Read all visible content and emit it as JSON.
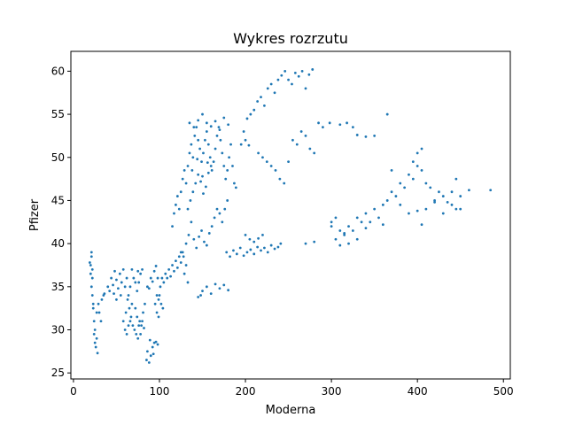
{
  "chart_data": {
    "type": "scatter",
    "title": "Wykres rozrzutu",
    "xlabel": "Moderna",
    "ylabel": "Pfizer",
    "xlim": [
      -3,
      508
    ],
    "ylim": [
      24.3,
      62.3
    ],
    "xticks": [
      0,
      100,
      200,
      300,
      400,
      500
    ],
    "yticks": [
      25,
      30,
      35,
      40,
      45,
      50,
      55,
      60
    ],
    "grid": false,
    "color": "#1f77b4",
    "series": [
      {
        "points": [
          [
            20,
            36.5
          ],
          [
            20,
            37.5
          ],
          [
            21,
            38.5
          ],
          [
            22,
            37
          ],
          [
            21,
            35
          ],
          [
            22,
            34
          ],
          [
            23,
            33
          ],
          [
            24,
            31
          ],
          [
            24,
            29.5
          ],
          [
            25,
            28.5
          ],
          [
            26,
            28
          ],
          [
            28,
            27.3
          ],
          [
            22,
            36
          ],
          [
            21,
            39
          ],
          [
            19,
            37.8
          ],
          [
            23,
            32.5
          ],
          [
            25,
            30
          ],
          [
            27,
            29
          ],
          [
            27,
            32
          ],
          [
            29,
            33
          ],
          [
            30,
            32
          ],
          [
            32,
            31
          ],
          [
            33,
            33.5
          ],
          [
            35,
            34
          ],
          [
            36,
            34.2
          ],
          [
            40,
            35
          ],
          [
            42,
            34.5
          ],
          [
            44,
            36
          ],
          [
            46,
            35.2
          ],
          [
            48,
            36.8
          ],
          [
            50,
            35.8
          ],
          [
            52,
            34.8
          ],
          [
            54,
            36.5
          ],
          [
            56,
            35.5
          ],
          [
            58,
            37
          ],
          [
            55,
            34
          ],
          [
            50,
            33.5
          ],
          [
            47,
            34.2
          ],
          [
            60,
            35
          ],
          [
            62,
            36
          ],
          [
            64,
            34
          ],
          [
            66,
            35
          ],
          [
            68,
            37
          ],
          [
            70,
            36
          ],
          [
            72,
            35.5
          ],
          [
            74,
            34.5
          ],
          [
            76,
            35.5
          ],
          [
            78,
            36.5
          ],
          [
            80,
            37
          ],
          [
            63,
            33.5
          ],
          [
            65,
            32.5
          ],
          [
            67,
            31.5
          ],
          [
            69,
            30.5
          ],
          [
            71,
            30
          ],
          [
            73,
            29.5
          ],
          [
            75,
            29
          ],
          [
            77,
            31
          ],
          [
            79,
            30.5
          ],
          [
            81,
            32
          ],
          [
            83,
            33
          ],
          [
            72,
            32.5
          ],
          [
            68,
            33
          ],
          [
            75,
            36.8
          ],
          [
            58,
            31
          ],
          [
            60,
            30
          ],
          [
            62,
            29.5
          ],
          [
            64,
            30.5
          ],
          [
            66,
            31
          ],
          [
            61,
            32
          ],
          [
            85,
            26.5
          ],
          [
            88,
            26.2
          ],
          [
            90,
            27
          ],
          [
            92,
            28
          ],
          [
            94,
            28.5
          ],
          [
            96,
            28.6
          ],
          [
            98,
            28.3
          ],
          [
            86,
            27.5
          ],
          [
            89,
            28.8
          ],
          [
            93,
            27.2
          ],
          [
            80,
            31
          ],
          [
            82,
            30.2
          ],
          [
            78,
            29.5
          ],
          [
            76,
            30.5
          ],
          [
            74,
            31.5
          ],
          [
            95,
            33
          ],
          [
            97,
            34
          ],
          [
            99,
            33.5
          ],
          [
            101,
            35
          ],
          [
            103,
            36
          ],
          [
            105,
            35.5
          ],
          [
            107,
            36.5
          ],
          [
            109,
            36
          ],
          [
            111,
            37
          ],
          [
            113,
            36.2
          ],
          [
            115,
            37.5
          ],
          [
            117,
            36.8
          ],
          [
            119,
            38
          ],
          [
            121,
            37.2
          ],
          [
            123,
            38.5
          ],
          [
            125,
            37.8
          ],
          [
            127,
            39
          ],
          [
            129,
            36.5
          ],
          [
            131,
            37.5
          ],
          [
            133,
            35.5
          ],
          [
            86,
            35
          ],
          [
            88,
            34.8
          ],
          [
            90,
            36
          ],
          [
            92,
            35.6
          ],
          [
            94,
            36.8
          ],
          [
            96,
            37.4
          ],
          [
            98,
            36
          ],
          [
            100,
            34
          ],
          [
            102,
            33
          ],
          [
            104,
            32.5
          ],
          [
            97,
            32
          ],
          [
            99,
            31.5
          ],
          [
            115,
            42
          ],
          [
            117,
            43.5
          ],
          [
            119,
            44.5
          ],
          [
            121,
            45.5
          ],
          [
            123,
            44
          ],
          [
            125,
            46
          ],
          [
            127,
            47.5
          ],
          [
            129,
            48.5
          ],
          [
            131,
            47
          ],
          [
            133,
            49
          ],
          [
            135,
            50.5
          ],
          [
            137,
            51.5
          ],
          [
            139,
            50
          ],
          [
            141,
            52.5
          ],
          [
            143,
            53.5
          ],
          [
            145,
            52
          ],
          [
            147,
            51
          ],
          [
            149,
            49.5
          ],
          [
            151,
            50.5
          ],
          [
            153,
            52
          ],
          [
            155,
            53
          ],
          [
            157,
            51.5
          ],
          [
            159,
            50
          ],
          [
            161,
            48.5
          ],
          [
            163,
            49.5
          ],
          [
            165,
            51
          ],
          [
            167,
            52.5
          ],
          [
            169,
            53.5
          ],
          [
            171,
            52
          ],
          [
            173,
            50.5
          ],
          [
            175,
            49
          ],
          [
            177,
            47.5
          ],
          [
            179,
            48.5
          ],
          [
            181,
            50
          ],
          [
            183,
            51.5
          ],
          [
            185,
            49
          ],
          [
            187,
            47
          ],
          [
            189,
            46.5
          ],
          [
            135,
            54
          ],
          [
            140,
            53.5
          ],
          [
            145,
            54.3
          ],
          [
            150,
            55
          ],
          [
            155,
            54
          ],
          [
            160,
            53.6
          ],
          [
            165,
            54.2
          ],
          [
            170,
            53.2
          ],
          [
            175,
            54.6
          ],
          [
            180,
            53.8
          ],
          [
            133,
            44
          ],
          [
            136,
            45
          ],
          [
            139,
            46
          ],
          [
            142,
            47
          ],
          [
            145,
            48
          ],
          [
            148,
            47.2
          ],
          [
            151,
            45.8
          ],
          [
            154,
            46.6
          ],
          [
            157,
            48.2
          ],
          [
            160,
            49
          ],
          [
            138,
            48.5
          ],
          [
            144,
            49.8
          ],
          [
            150,
            47.8
          ],
          [
            156,
            49.4
          ],
          [
            125,
            39
          ],
          [
            128,
            38.5
          ],
          [
            131,
            40
          ],
          [
            134,
            41
          ],
          [
            137,
            42.5
          ],
          [
            140,
            40.5
          ],
          [
            143,
            39.5
          ],
          [
            146,
            40.8
          ],
          [
            149,
            41.5
          ],
          [
            152,
            40.2
          ],
          [
            155,
            39.8
          ],
          [
            158,
            41.2
          ],
          [
            161,
            42
          ],
          [
            164,
            43
          ],
          [
            167,
            44
          ],
          [
            170,
            43.5
          ],
          [
            173,
            42.5
          ],
          [
            176,
            44
          ],
          [
            179,
            45
          ],
          [
            150,
            34.5
          ],
          [
            155,
            35
          ],
          [
            160,
            34.2
          ],
          [
            165,
            35.3
          ],
          [
            170,
            34.8
          ],
          [
            175,
            35.2
          ],
          [
            180,
            34.6
          ],
          [
            145,
            33.8
          ],
          [
            148,
            34
          ],
          [
            178,
            39
          ],
          [
            182,
            38.5
          ],
          [
            186,
            39.2
          ],
          [
            190,
            38.8
          ],
          [
            194,
            39.5
          ],
          [
            198,
            38.6
          ],
          [
            202,
            39
          ],
          [
            206,
            39.3
          ],
          [
            210,
            38.8
          ],
          [
            214,
            39.6
          ],
          [
            218,
            39.2
          ],
          [
            222,
            39.5
          ],
          [
            226,
            39
          ],
          [
            230,
            39.8
          ],
          [
            234,
            39.4
          ],
          [
            238,
            39.6
          ],
          [
            241,
            40
          ],
          [
            200,
            41
          ],
          [
            205,
            40.5
          ],
          [
            210,
            40.2
          ],
          [
            215,
            40.6
          ],
          [
            220,
            41
          ],
          [
            195,
            51.5
          ],
          [
            200,
            52
          ],
          [
            204,
            51.4
          ],
          [
            198,
            53
          ],
          [
            202,
            54.5
          ],
          [
            206,
            55
          ],
          [
            210,
            55.5
          ],
          [
            214,
            56.5
          ],
          [
            218,
            57
          ],
          [
            222,
            56
          ],
          [
            226,
            58
          ],
          [
            230,
            58.5
          ],
          [
            234,
            57.5
          ],
          [
            238,
            59
          ],
          [
            242,
            59.5
          ],
          [
            246,
            60
          ],
          [
            250,
            59
          ],
          [
            254,
            58.5
          ],
          [
            258,
            59.8
          ],
          [
            262,
            59.4
          ],
          [
            266,
            60
          ],
          [
            270,
            58
          ],
          [
            274,
            59.6
          ],
          [
            278,
            60.2
          ],
          [
            215,
            50.5
          ],
          [
            220,
            50
          ],
          [
            225,
            49.5
          ],
          [
            230,
            49
          ],
          [
            235,
            48.5
          ],
          [
            240,
            47.5
          ],
          [
            245,
            47
          ],
          [
            250,
            49.5
          ],
          [
            255,
            52
          ],
          [
            260,
            51.5
          ],
          [
            265,
            53
          ],
          [
            270,
            52.5
          ],
          [
            275,
            51
          ],
          [
            280,
            50.5
          ],
          [
            285,
            54
          ],
          [
            290,
            53.5
          ],
          [
            298,
            54
          ],
          [
            310,
            53.8
          ],
          [
            318,
            54
          ],
          [
            325,
            53.5
          ],
          [
            330,
            52.6
          ],
          [
            340,
            52.4
          ],
          [
            350,
            52.5
          ],
          [
            365,
            55
          ],
          [
            270,
            40
          ],
          [
            280,
            40.2
          ],
          [
            300,
            42.5
          ],
          [
            305,
            43
          ],
          [
            310,
            41.5
          ],
          [
            315,
            41
          ],
          [
            320,
            42
          ],
          [
            325,
            41.5
          ],
          [
            330,
            43
          ],
          [
            335,
            42.5
          ],
          [
            340,
            43.5
          ],
          [
            345,
            42.5
          ],
          [
            350,
            44
          ],
          [
            355,
            43
          ],
          [
            360,
            44.5
          ],
          [
            365,
            45
          ],
          [
            370,
            46
          ],
          [
            375,
            45.5
          ],
          [
            380,
            47
          ],
          [
            385,
            46.5
          ],
          [
            390,
            48
          ],
          [
            395,
            47.5
          ],
          [
            400,
            49
          ],
          [
            405,
            48.5
          ],
          [
            410,
            47
          ],
          [
            415,
            46.5
          ],
          [
            420,
            45
          ],
          [
            425,
            46
          ],
          [
            430,
            45.5
          ],
          [
            435,
            44.8
          ],
          [
            440,
            44.5
          ],
          [
            445,
            44
          ],
          [
            450,
            45.5
          ],
          [
            460,
            46.2
          ],
          [
            485,
            46.2
          ],
          [
            300,
            42
          ],
          [
            305,
            40.5
          ],
          [
            310,
            39.8
          ],
          [
            315,
            41.2
          ],
          [
            320,
            40
          ],
          [
            330,
            40.5
          ],
          [
            340,
            41.8
          ],
          [
            360,
            42.2
          ],
          [
            370,
            48.5
          ],
          [
            380,
            44.5
          ],
          [
            390,
            43.5
          ],
          [
            400,
            43.8
          ],
          [
            405,
            42.2
          ],
          [
            410,
            44
          ],
          [
            420,
            44.8
          ],
          [
            430,
            43.5
          ],
          [
            440,
            46
          ],
          [
            445,
            47.5
          ],
          [
            450,
            44
          ],
          [
            400,
            50.5
          ],
          [
            405,
            51
          ],
          [
            395,
            49.5
          ]
        ]
      }
    ]
  }
}
